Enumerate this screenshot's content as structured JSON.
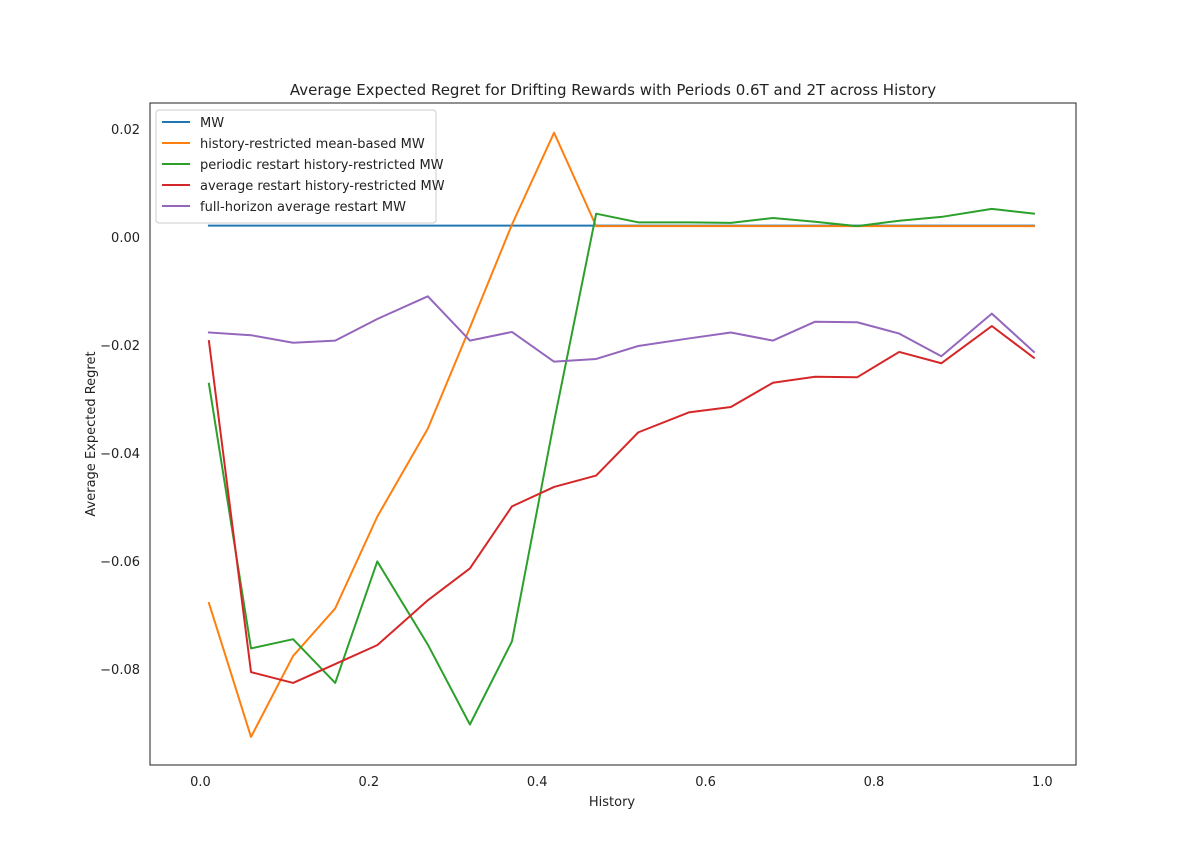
{
  "chart_data": {
    "type": "line",
    "title": "Average Expected Regret for Drifting Rewards with Periods 0.6T and 2T across History",
    "xlabel": "History",
    "ylabel": "Average Expected Regret",
    "xlim": [
      -0.06,
      1.04
    ],
    "ylim": [
      -0.0978,
      0.0248
    ],
    "xticks": [
      0.0,
      0.2,
      0.4,
      0.6,
      0.8,
      1.0
    ],
    "xtick_labels": [
      "0.0",
      "0.2",
      "0.4",
      "0.6",
      "0.8",
      "1.0"
    ],
    "yticks": [
      0.02,
      0.0,
      -0.02,
      -0.04,
      -0.06,
      -0.08
    ],
    "ytick_labels": [
      "0.02",
      "0.00",
      "−0.02",
      "−0.04",
      "−0.06",
      "−0.08"
    ],
    "grid": false,
    "legend_position": "top-left",
    "x": [
      0.01,
      0.06,
      0.11,
      0.16,
      0.21,
      0.27,
      0.32,
      0.37,
      0.42,
      0.47,
      0.52,
      0.58,
      0.63,
      0.68,
      0.73,
      0.78,
      0.83,
      0.88,
      0.94,
      0.99
    ],
    "series": [
      {
        "name": "MW",
        "color": "#1f77b4",
        "values": [
          0.0021,
          0.0021,
          0.0021,
          0.0021,
          0.0021,
          0.0021,
          0.0021,
          0.0021,
          0.0021,
          0.0021,
          0.0021,
          0.0021,
          0.0021,
          0.0021,
          0.0021,
          0.0021,
          0.0021,
          0.0021,
          0.0021,
          0.0021
        ]
      },
      {
        "name": "history-restricted mean-based MW",
        "color": "#ff7f0e",
        "values": [
          -0.0678,
          -0.0926,
          -0.0776,
          -0.0688,
          -0.0518,
          -0.0355,
          -0.0168,
          0.0023,
          0.0193,
          0.002,
          0.002,
          0.002,
          0.002,
          0.002,
          0.002,
          0.002,
          0.002,
          0.002,
          0.002,
          0.002
        ]
      },
      {
        "name": "periodic restart history-restricted MW",
        "color": "#2ca02c",
        "values": [
          -0.0272,
          -0.0762,
          -0.0745,
          -0.0826,
          -0.0601,
          -0.0755,
          -0.0903,
          -0.0749,
          -0.0342,
          0.0043,
          0.0027,
          0.0027,
          0.0026,
          0.0035,
          0.0028,
          0.002,
          0.003,
          0.0037,
          0.0052,
          0.0043
        ]
      },
      {
        "name": "average restart history-restricted MW",
        "color": "#d62728",
        "values": [
          -0.0193,
          -0.0806,
          -0.0826,
          -0.0791,
          -0.0756,
          -0.0673,
          -0.0614,
          -0.0499,
          -0.0463,
          -0.0442,
          -0.0362,
          -0.0325,
          -0.0315,
          -0.027,
          -0.0259,
          -0.026,
          -0.0213,
          -0.0234,
          -0.0165,
          -0.0224
        ]
      },
      {
        "name": "full-horizon average restart MW",
        "color": "#9467bd",
        "values": [
          -0.0177,
          -0.0182,
          -0.0196,
          -0.0192,
          -0.0152,
          -0.011,
          -0.0192,
          -0.0176,
          -0.0231,
          -0.0226,
          -0.0202,
          -0.0188,
          -0.0177,
          -0.0192,
          -0.0157,
          -0.0158,
          -0.0179,
          -0.0221,
          -0.0142,
          -0.0213
        ]
      }
    ]
  }
}
